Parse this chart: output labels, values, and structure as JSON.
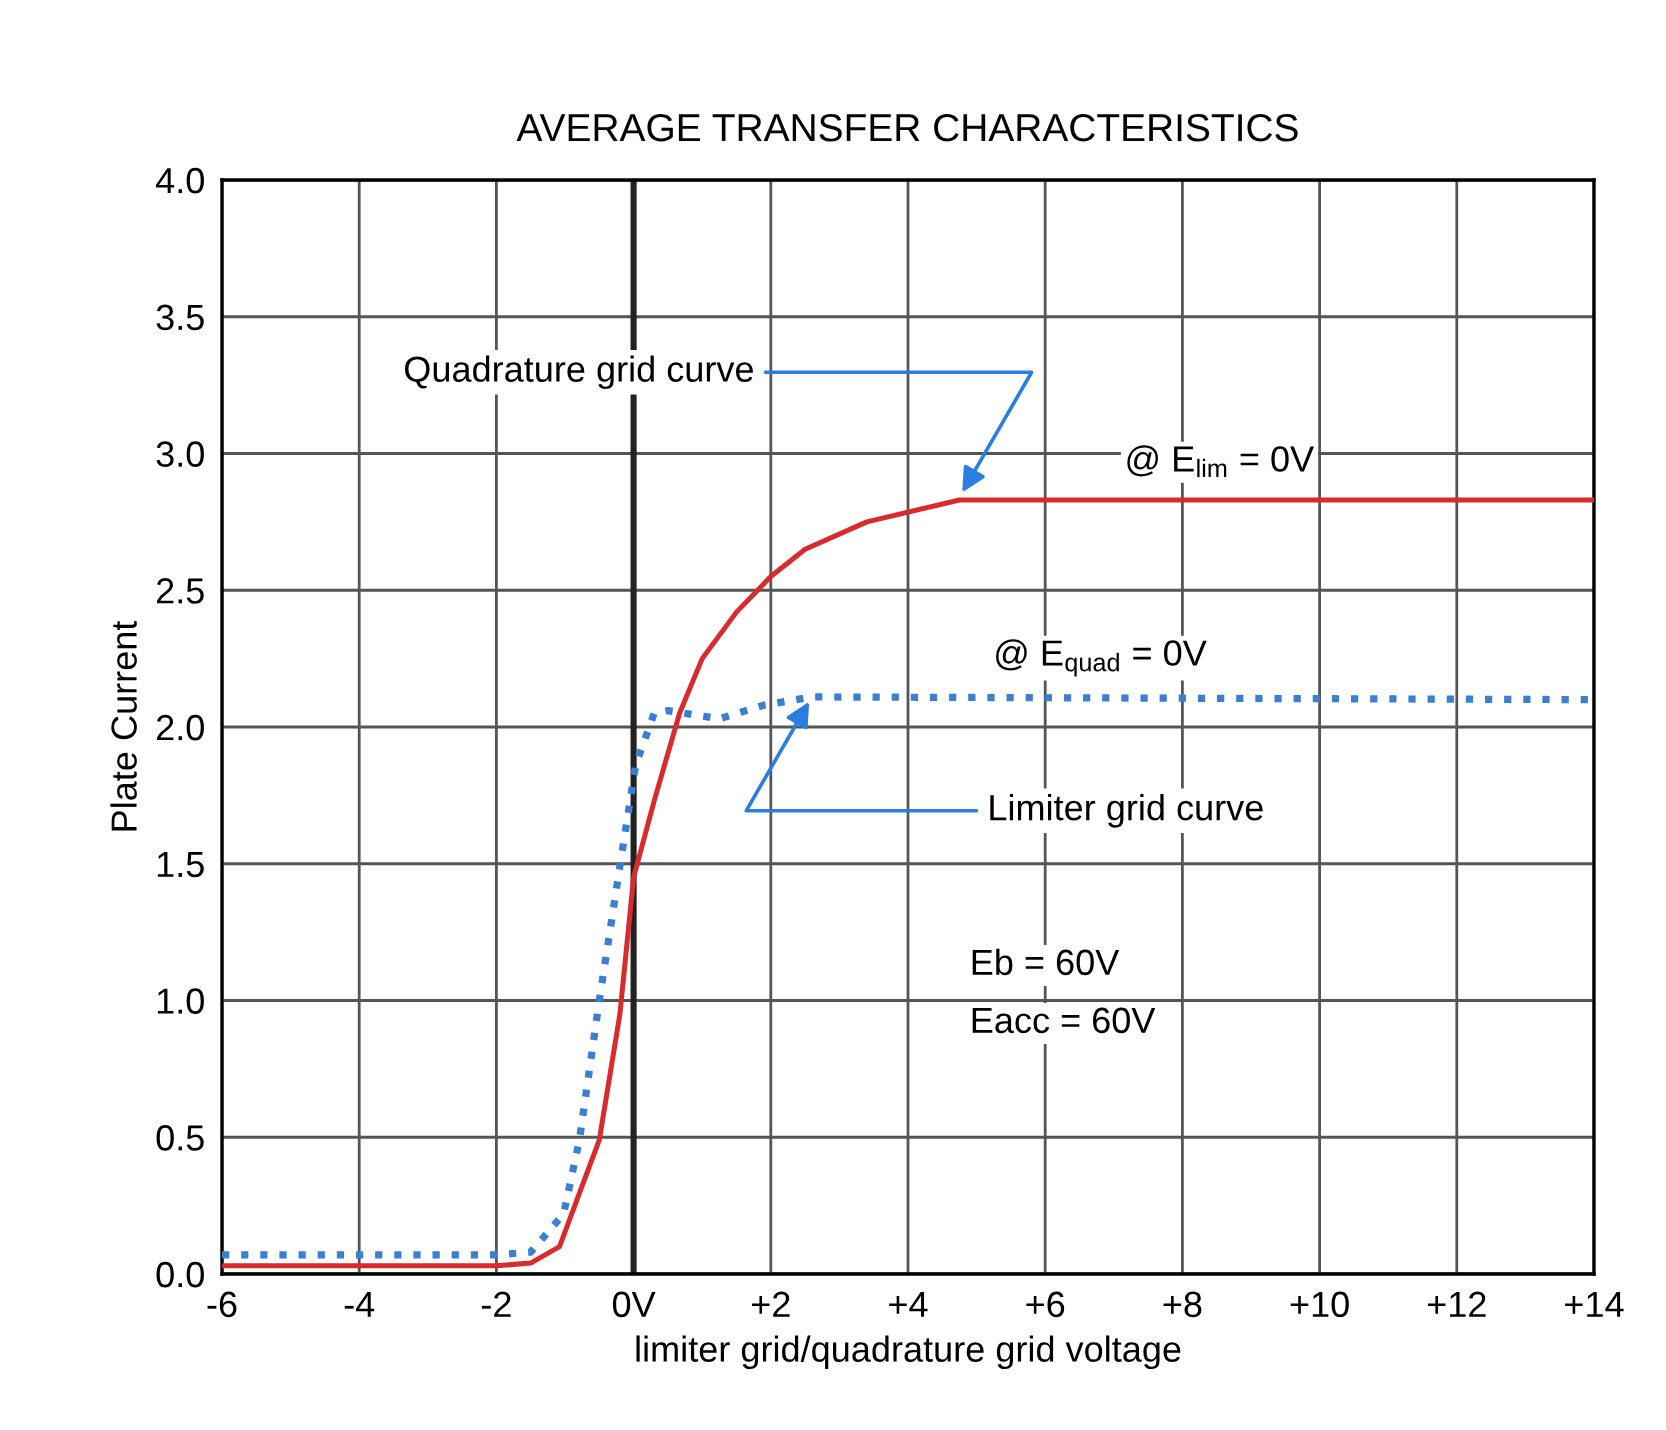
{
  "chart_data": {
    "type": "line",
    "title": "AVERAGE TRANSFER CHARACTERISTICS",
    "xlabel": "limiter grid/quadrature grid voltage",
    "ylabel": "Plate Current",
    "series": [
      {
        "color": "#d92b2b",
        "line_style": "solid",
        "x": [
          -6,
          -2,
          -1.5,
          -1.08,
          -0.5,
          -0.2,
          0,
          0.3,
          0.67,
          1,
          1.5,
          2,
          2.5,
          3.4,
          4.75,
          14
        ],
        "values": [
          0.03,
          0.03,
          0.04,
          0.1,
          0.49,
          0.95,
          1.45,
          1.73,
          2.05,
          2.25,
          2.42,
          2.55,
          2.65,
          2.75,
          2.83,
          2.83
        ]
      },
      {
        "color": "#3b7fd4",
        "line_style": "dotted",
        "x": [
          -6,
          -2,
          -1.5,
          -1.02,
          -0.79,
          -0.5,
          -0.2,
          0.03,
          0.3,
          0.5,
          1.25,
          1.9,
          2.6,
          14
        ],
        "values": [
          0.07,
          0.07,
          0.08,
          0.22,
          0.49,
          1.0,
          1.49,
          1.86,
          2.05,
          2.06,
          2.03,
          2.08,
          2.11,
          2.1
        ]
      }
    ],
    "xlim": [
      -6,
      14
    ],
    "xticks": [
      -6,
      -4,
      -2,
      {
        "value": 0,
        "label": "0V"
      },
      {
        "value": 2,
        "label": "+2"
      },
      {
        "value": 4,
        "label": "+4"
      },
      {
        "value": 6,
        "label": "+6"
      },
      {
        "value": 8,
        "label": "+8"
      },
      {
        "value": 10,
        "label": "+10"
      },
      {
        "value": 12,
        "label": "+12"
      },
      {
        "value": 14,
        "label": "+14"
      }
    ],
    "ylim": [
      0,
      4
    ],
    "yticks": [
      {
        "value": 0,
        "label": "0.0"
      },
      {
        "value": 0.5,
        "label": "0.5"
      },
      {
        "value": 1,
        "label": "1.0"
      },
      {
        "value": 1.5,
        "label": "1.5"
      },
      {
        "value": 2,
        "label": "2.0"
      },
      {
        "value": 2.5,
        "label": "2.5"
      },
      {
        "value": 3,
        "label": "3.0"
      },
      {
        "value": 3.5,
        "label": "3.5"
      },
      {
        "value": 4,
        "label": "4.0"
      }
    ],
    "grid": true,
    "ref_lines": [
      {
        "axis": "x",
        "value": 0,
        "color": "#222222"
      }
    ],
    "annotations": [
      {
        "text": "Quadrature grid curve",
        "x": 4.75,
        "y": 2.84
      },
      {
        "text": "Limiter grid curve",
        "x": 2.6,
        "y": 2.11
      },
      "@ E$_{lim}$ = 0V",
      "@ E$_{quad}$ = 0V",
      "Eb = 60V",
      "Eacc = 60V"
    ]
  }
}
